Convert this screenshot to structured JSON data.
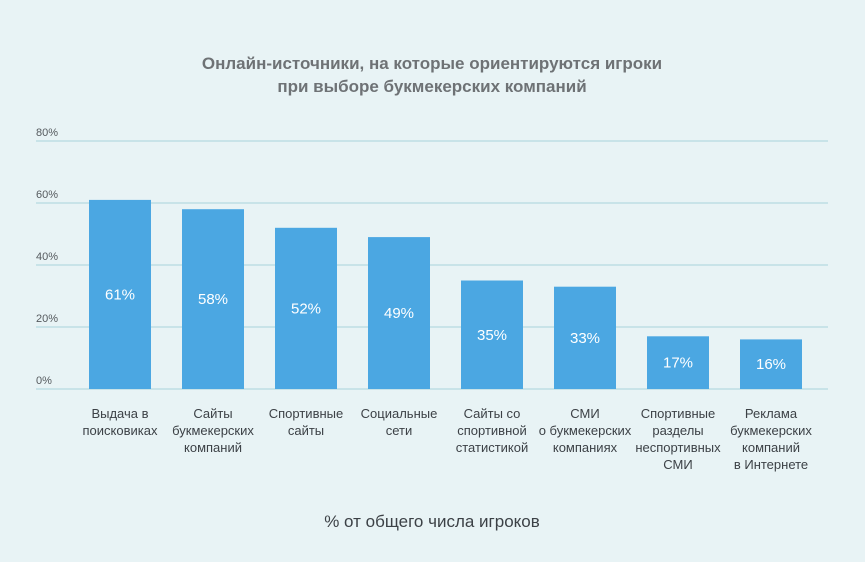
{
  "chart_data": {
    "type": "bar",
    "title": [
      "Онлайн-источники, на которые ориентируются игроки",
      "при выборе букмекерских компаний"
    ],
    "categories": [
      [
        "Выдача в",
        "поисковиках"
      ],
      [
        "Сайты",
        "букмекерских",
        "компаний"
      ],
      [
        "Спортивные",
        "сайты"
      ],
      [
        "Социальные",
        "сети"
      ],
      [
        "Сайты со",
        "спортивной",
        "статистикой"
      ],
      [
        "СМИ",
        "о букмекерских",
        "компаниях"
      ],
      [
        "Спортивные",
        "разделы",
        "неспортивных",
        "СМИ"
      ],
      [
        "Реклама",
        "букмекерских",
        "компаний",
        "в Интернете"
      ]
    ],
    "values": [
      61,
      58,
      52,
      49,
      35,
      33,
      17,
      16
    ],
    "value_labels": [
      "61%",
      "58%",
      "52%",
      "49%",
      "35%",
      "33%",
      "17%",
      "16%"
    ],
    "xlabel": "% от общего числа игроков",
    "ylabel": "",
    "ylim": [
      0,
      80
    ],
    "yticks": [
      0,
      20,
      40,
      60,
      80
    ],
    "ytick_labels": [
      "0%",
      "20%",
      "40%",
      "60%",
      "80%"
    ],
    "grid": true,
    "colors": {
      "background": "#e8f3f5",
      "bar": "#4ba7e2",
      "grid": "#a8d3dc",
      "bar_label": "#ffffff",
      "title": "#6e7275",
      "text": "#3c4146"
    }
  }
}
